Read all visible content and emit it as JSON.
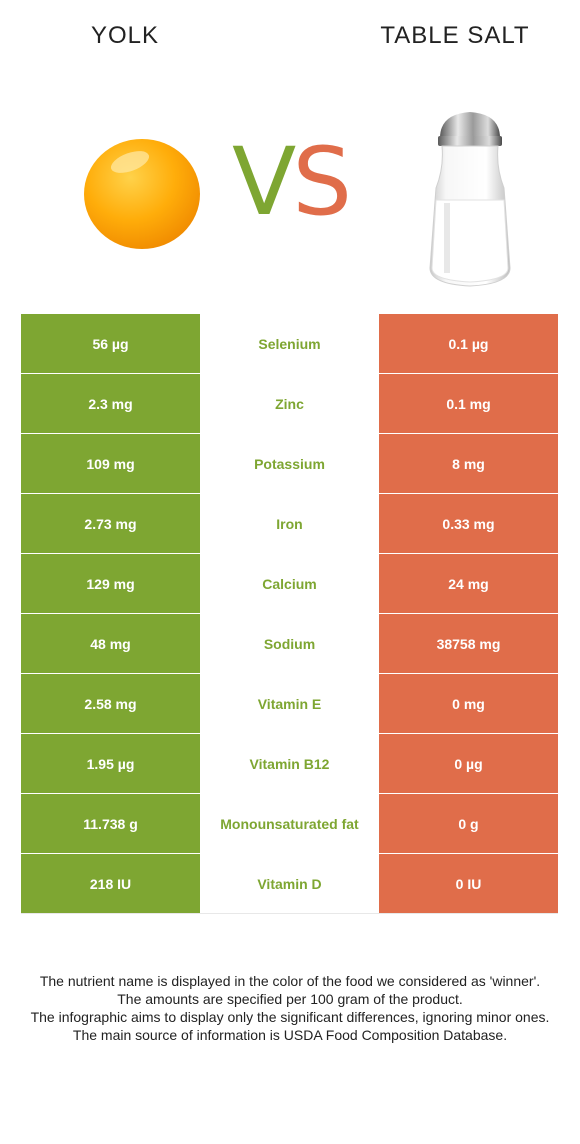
{
  "header": {
    "left_food": "YOLK",
    "vs_v": "V",
    "vs_s": "S",
    "right_food": "TABLE SALT"
  },
  "colors": {
    "left_winner": "#7ea632",
    "right_winner": "#e06d4a"
  },
  "rows": [
    {
      "left": "56 µg",
      "nutrient": "Selenium",
      "right": "0.1 µg",
      "winner": "left"
    },
    {
      "left": "2.3 mg",
      "nutrient": "Zinc",
      "right": "0.1 mg",
      "winner": "left"
    },
    {
      "left": "109 mg",
      "nutrient": "Potassium",
      "right": "8 mg",
      "winner": "left"
    },
    {
      "left": "2.73 mg",
      "nutrient": "Iron",
      "right": "0.33 mg",
      "winner": "left"
    },
    {
      "left": "129 mg",
      "nutrient": "Calcium",
      "right": "24 mg",
      "winner": "left"
    },
    {
      "left": "48 mg",
      "nutrient": "Sodium",
      "right": "38758 mg",
      "winner": "left"
    },
    {
      "left": "2.58 mg",
      "nutrient": "Vitamin E",
      "right": "0 mg",
      "winner": "left"
    },
    {
      "left": "1.95 µg",
      "nutrient": "Vitamin B12",
      "right": "0 µg",
      "winner": "left"
    },
    {
      "left": "11.738 g",
      "nutrient": "Monounsaturated fat",
      "right": "0 g",
      "winner": "left"
    },
    {
      "left": "218 IU",
      "nutrient": "Vitamin D",
      "right": "0 IU",
      "winner": "left"
    }
  ],
  "footnote": [
    "The nutrient name is displayed in the color of the food we considered as 'winner'.",
    "The amounts are specified per 100 gram of the product.",
    "The infographic aims to display only the significant differences, ignoring minor ones.",
    "The main source of information is USDA Food Composition Database."
  ]
}
